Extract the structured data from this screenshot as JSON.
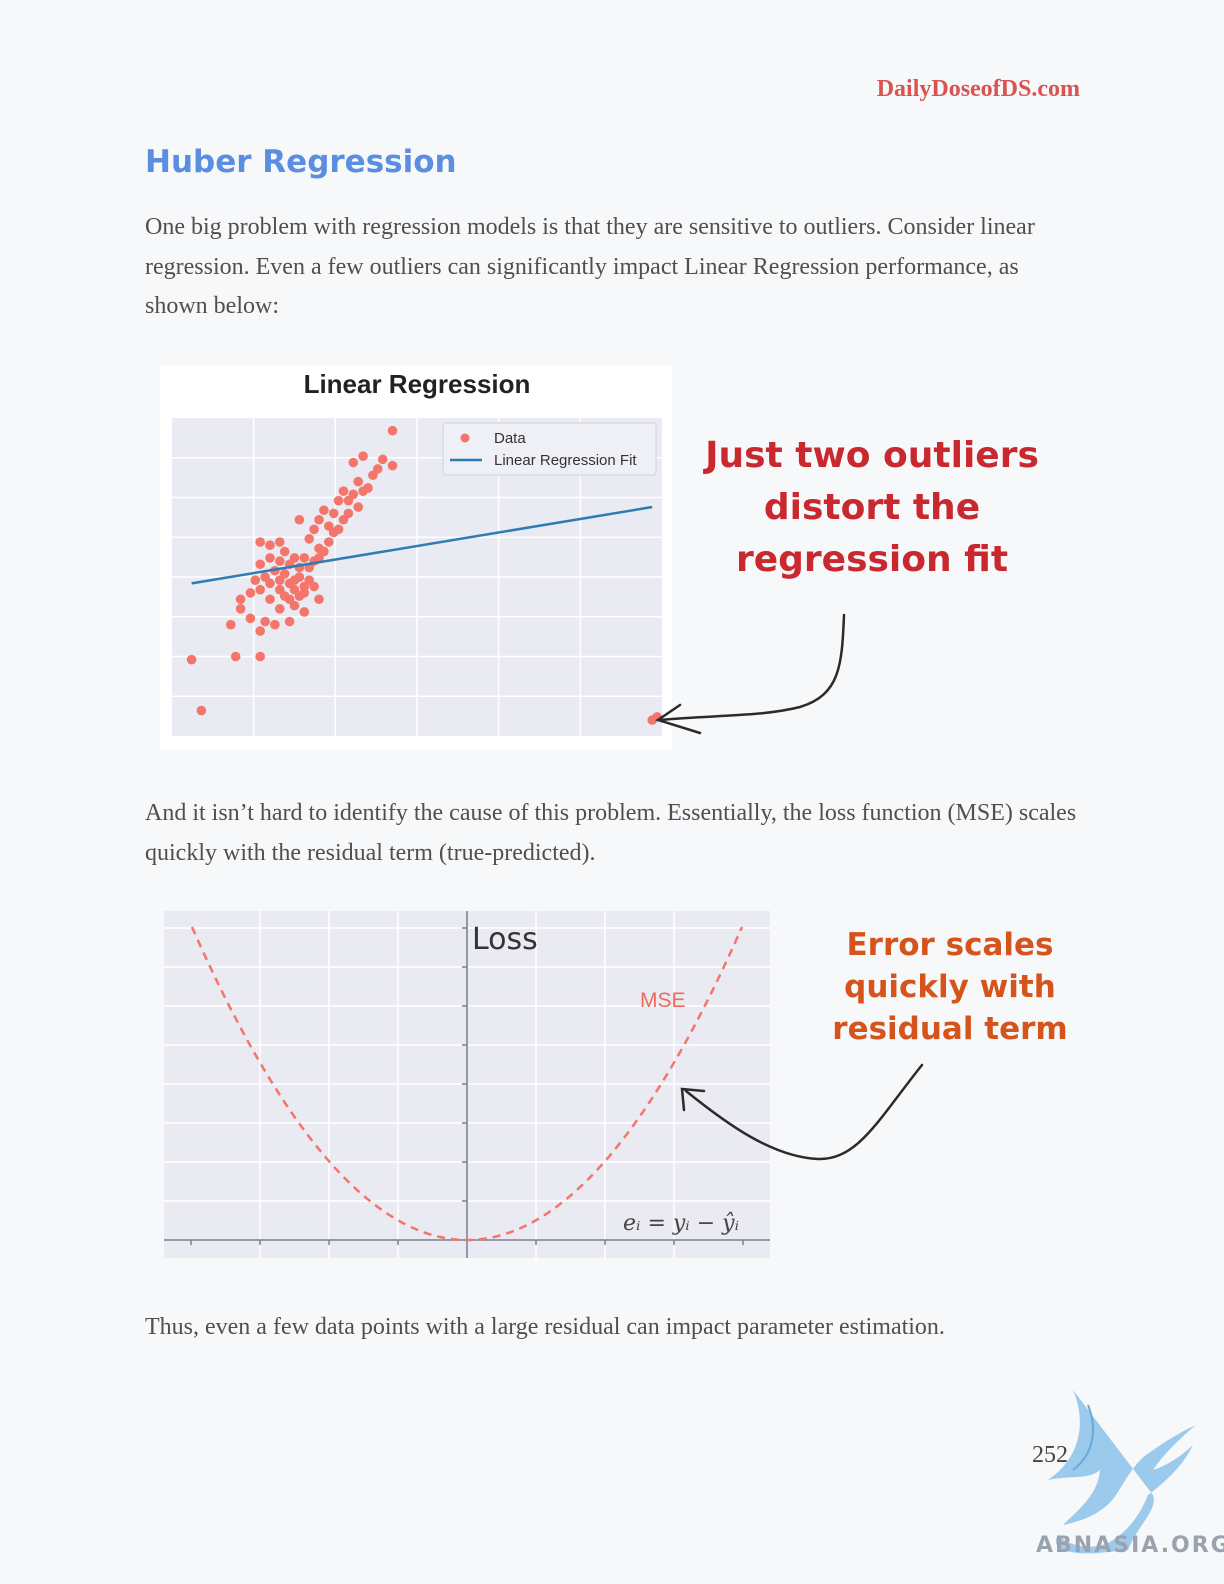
{
  "header": {
    "site": "DailyDoseofDS.com"
  },
  "section_title": "Huber Regression",
  "paragraphs": {
    "p1": "One big problem with regression models is that they are sensitive to outliers. Consider linear regression. Even a few outliers can significantly impact Linear Regression performance, as shown below:",
    "p2": "And it isn’t hard to identify the cause of this problem. Essentially, the loss function (MSE) scales quickly with the residual term (true-predicted).",
    "p3": "Thus, even a few data points with a large residual can impact parameter estimation."
  },
  "figure1": {
    "title": "Linear Regression",
    "legend": {
      "data": "Data",
      "fit": "Linear Regression Fit"
    },
    "annotation": [
      "Just two outliers",
      "distort the",
      "regression fit"
    ],
    "colors": {
      "points": "#f4756a",
      "line": "#2f7bb4",
      "annotation": "#c8282e",
      "panel": "#e9eaf2"
    }
  },
  "figure2": {
    "ylabel": "Loss",
    "series_label": "MSE",
    "formula": "eᵢ = yᵢ − ŷᵢ",
    "annotation": [
      "Error scales",
      "quickly with",
      "residual term"
    ],
    "colors": {
      "curve": "#f4756a",
      "annotation": "#d4541c",
      "panel": "#e9eaf2"
    }
  },
  "page_number": "252",
  "watermark": {
    "text": "ABNASIA.ORG"
  },
  "chart_data": [
    {
      "type": "scatter",
      "title": "Linear Regression",
      "xlabel": "",
      "ylabel": "",
      "series": [
        {
          "name": "Data",
          "points": [
            [
              0.04,
              0.24
            ],
            [
              0.06,
              0.08
            ],
            [
              0.13,
              0.25
            ],
            [
              0.18,
              0.25
            ],
            [
              0.12,
              0.35
            ],
            [
              0.16,
              0.37
            ],
            [
              0.14,
              0.4
            ],
            [
              0.18,
              0.33
            ],
            [
              0.19,
              0.36
            ],
            [
              0.21,
              0.35
            ],
            [
              0.22,
              0.4
            ],
            [
              0.24,
              0.36
            ],
            [
              0.2,
              0.43
            ],
            [
              0.23,
              0.44
            ],
            [
              0.25,
              0.41
            ],
            [
              0.27,
              0.39
            ],
            [
              0.18,
              0.46
            ],
            [
              0.2,
              0.48
            ],
            [
              0.22,
              0.46
            ],
            [
              0.25,
              0.46
            ],
            [
              0.27,
              0.45
            ],
            [
              0.24,
              0.43
            ],
            [
              0.26,
              0.5
            ],
            [
              0.28,
              0.49
            ],
            [
              0.29,
              0.47
            ],
            [
              0.23,
              0.51
            ],
            [
              0.21,
              0.52
            ],
            [
              0.19,
              0.5
            ],
            [
              0.17,
              0.49
            ],
            [
              0.18,
              0.54
            ],
            [
              0.2,
              0.56
            ],
            [
              0.22,
              0.55
            ],
            [
              0.24,
              0.54
            ],
            [
              0.26,
              0.53
            ],
            [
              0.25,
              0.56
            ],
            [
              0.23,
              0.58
            ],
            [
              0.27,
              0.56
            ],
            [
              0.29,
              0.55
            ],
            [
              0.3,
              0.59
            ],
            [
              0.31,
              0.58
            ],
            [
              0.2,
              0.6
            ],
            [
              0.22,
              0.61
            ],
            [
              0.18,
              0.61
            ],
            [
              0.28,
              0.62
            ],
            [
              0.32,
              0.61
            ],
            [
              0.29,
              0.65
            ],
            [
              0.33,
              0.64
            ],
            [
              0.26,
              0.68
            ],
            [
              0.3,
              0.68
            ],
            [
              0.32,
              0.66
            ],
            [
              0.34,
              0.65
            ],
            [
              0.31,
              0.71
            ],
            [
              0.33,
              0.7
            ],
            [
              0.35,
              0.68
            ],
            [
              0.36,
              0.7
            ],
            [
              0.34,
              0.74
            ],
            [
              0.36,
              0.74
            ],
            [
              0.38,
              0.72
            ],
            [
              0.37,
              0.76
            ],
            [
              0.35,
              0.77
            ],
            [
              0.39,
              0.77
            ],
            [
              0.38,
              0.8
            ],
            [
              0.4,
              0.78
            ],
            [
              0.41,
              0.82
            ],
            [
              0.37,
              0.86
            ],
            [
              0.39,
              0.88
            ],
            [
              0.42,
              0.84
            ],
            [
              0.43,
              0.87
            ],
            [
              0.45,
              0.96
            ],
            [
              0.45,
              0.85
            ],
            [
              0.3,
              0.43
            ],
            [
              0.26,
              0.44
            ],
            [
              0.24,
              0.48
            ],
            [
              0.22,
              0.49
            ],
            [
              0.27,
              0.47
            ],
            [
              0.25,
              0.49
            ],
            [
              0.28,
              0.53
            ],
            [
              0.3,
              0.56
            ],
            [
              0.16,
              0.45
            ],
            [
              0.14,
              0.43
            ],
            [
              0.98,
              0.05
            ],
            [
              0.99,
              0.06
            ]
          ]
        },
        {
          "name": "Linear Regression Fit",
          "type": "line",
          "x": [
            0.04,
            0.98
          ],
          "y": [
            0.48,
            0.72
          ]
        }
      ],
      "xlim": [
        0,
        1
      ],
      "ylim": [
        0,
        1
      ],
      "grid": true,
      "legend": "top-right"
    },
    {
      "type": "line",
      "title": "",
      "xlabel": "eᵢ = yᵢ − ŷᵢ",
      "ylabel": "Loss",
      "series": [
        {
          "name": "MSE",
          "function": "x^2",
          "style": "dashed"
        }
      ],
      "xlim": [
        -1,
        1
      ],
      "ylim": [
        0,
        1
      ],
      "grid": true
    }
  ]
}
